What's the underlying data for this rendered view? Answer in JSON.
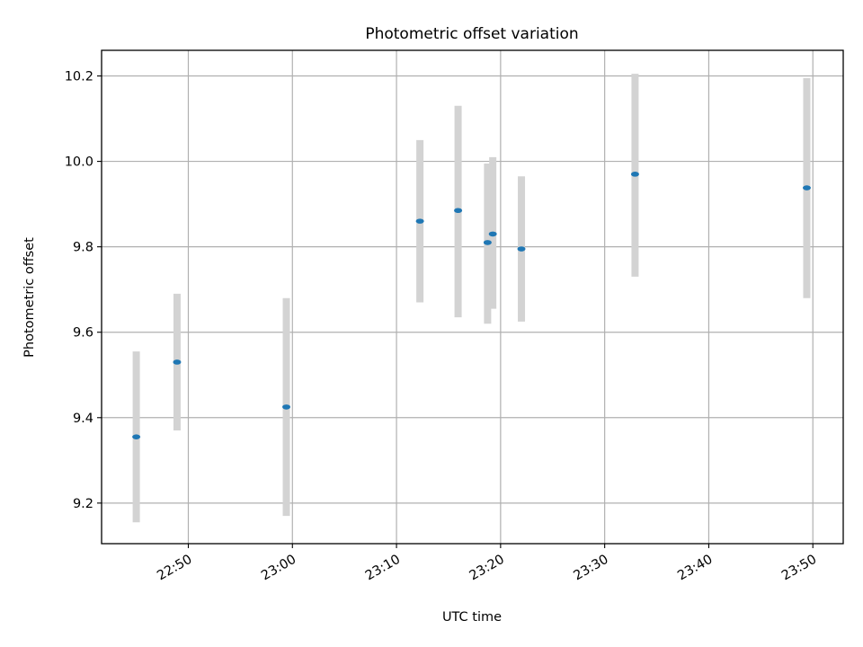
{
  "chart_data": {
    "type": "scatter",
    "title": "Photometric offset variation",
    "xlabel": "UTC time",
    "ylabel": "Photometric offset",
    "x_ticks": [
      "22:50",
      "23:00",
      "23:10",
      "23:20",
      "23:30",
      "23:40",
      "23:50"
    ],
    "y_ticks": [
      "9.2",
      "9.4",
      "9.6",
      "9.8",
      "10.0",
      "10.2"
    ],
    "xlim": [
      "22:41:40",
      "23:52:55"
    ],
    "ylim": [
      9.105,
      10.26
    ],
    "grid": true,
    "colors": {
      "marker": "#1f77b4",
      "errorbar": "#d3d3d3"
    },
    "points": [
      {
        "x": "22:45:00",
        "y": 9.355,
        "ylow": 9.155,
        "yhigh": 9.555
      },
      {
        "x": "22:48:55",
        "y": 9.53,
        "ylow": 9.37,
        "yhigh": 9.69
      },
      {
        "x": "22:59:25",
        "y": 9.425,
        "ylow": 9.17,
        "yhigh": 9.68
      },
      {
        "x": "23:12:15",
        "y": 9.86,
        "ylow": 9.67,
        "yhigh": 10.05
      },
      {
        "x": "23:15:55",
        "y": 9.885,
        "ylow": 9.635,
        "yhigh": 10.13
      },
      {
        "x": "23:18:45",
        "y": 9.81,
        "ylow": 9.62,
        "yhigh": 9.995
      },
      {
        "x": "23:19:15",
        "y": 9.83,
        "ylow": 9.655,
        "yhigh": 10.01
      },
      {
        "x": "23:22:00",
        "y": 9.795,
        "ylow": 9.625,
        "yhigh": 9.965
      },
      {
        "x": "23:32:55",
        "y": 9.97,
        "ylow": 9.73,
        "yhigh": 10.205
      },
      {
        "x": "23:49:25",
        "y": 9.938,
        "ylow": 9.68,
        "yhigh": 10.195
      }
    ]
  }
}
